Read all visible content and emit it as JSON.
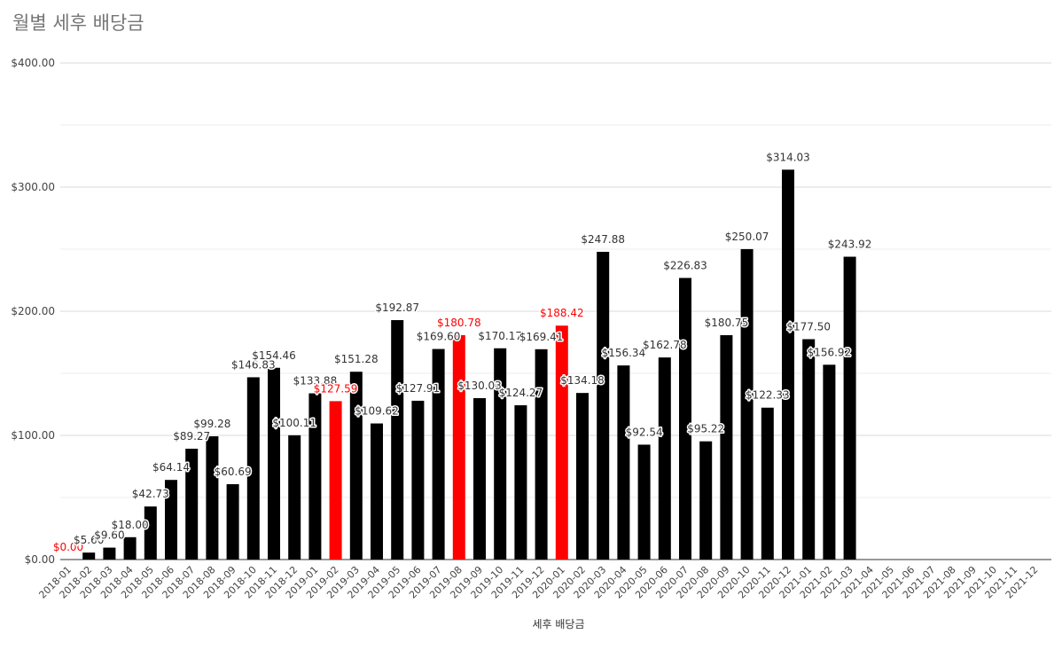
{
  "chart_data": {
    "type": "bar",
    "title": "월별 세후 배당금",
    "xlabel": "세후 배당금",
    "ylabel": "",
    "ylim": [
      0,
      400
    ],
    "yticks": [
      "$0.00",
      "$100.00",
      "$200.00",
      "$300.00",
      "$400.00"
    ],
    "grid": true,
    "colors": {
      "default": "#000000",
      "highlight": "#ff0000",
      "grid": "#d9d9d9",
      "axis": "#333333"
    },
    "categories": [
      "2018-01",
      "2018-02",
      "2018-03",
      "2018-04",
      "2018-05",
      "2018-06",
      "2018-07",
      "2018-08",
      "2018-09",
      "2018-10",
      "2018-11",
      "2018-12",
      "2019-01",
      "2019-02",
      "2019-03",
      "2019-04",
      "2019-05",
      "2019-06",
      "2019-07",
      "2019-08",
      "2019-09",
      "2019-10",
      "2019-11",
      "2019-12",
      "2020-01",
      "2020-02",
      "2020-03",
      "2020-04",
      "2020-05",
      "2020-06",
      "2020-07",
      "2020-08",
      "2020-09",
      "2020-10",
      "2020-11",
      "2020-12",
      "2021-01",
      "2021-02",
      "2021-03",
      "2021-04",
      "2021-05",
      "2021-06",
      "2021-07",
      "2021-08",
      "2021-09",
      "2021-10",
      "2021-11",
      "2021-12"
    ],
    "values": [
      0,
      5.6,
      9.6,
      18.0,
      42.73,
      64.14,
      89.27,
      99.28,
      60.69,
      146.83,
      154.46,
      100.11,
      133.88,
      127.59,
      151.28,
      109.62,
      192.87,
      127.91,
      169.6,
      180.78,
      130.03,
      170.17,
      124.27,
      169.41,
      188.42,
      134.18,
      247.88,
      156.34,
      92.54,
      162.78,
      226.83,
      95.22,
      180.75,
      250.07,
      122.33,
      314.03,
      177.5,
      156.92,
      243.92,
      null,
      null,
      null,
      null,
      null,
      null,
      null,
      null,
      null
    ],
    "data_labels": [
      "$0.00",
      "$5.60",
      "$9.60",
      "$18.00",
      "$42.73",
      "$64.14",
      "$89.27",
      "$99.28",
      "$60.69",
      "$146.83",
      "$154.46",
      "$100.11",
      "$133.88",
      "$127.59",
      "$151.28",
      "$109.62",
      "$192.87",
      "$127.91",
      "$169.60",
      "$180.78",
      "$130.03",
      "$170.17",
      "$124.27",
      "$169.41",
      "$188.42",
      "$134.18",
      "$247.88",
      "$156.34",
      "$92.54",
      "$162.78",
      "$226.83",
      "$95.22",
      "$180.75",
      "$250.07",
      "$122.33",
      "$314.03",
      "$177.50",
      "$156.92",
      "$243.92",
      "",
      "",
      "",
      "",
      "",
      "",
      "",
      "",
      ""
    ],
    "highlighted": [
      "2018-01",
      "2019-02",
      "2019-08",
      "2020-01"
    ]
  }
}
